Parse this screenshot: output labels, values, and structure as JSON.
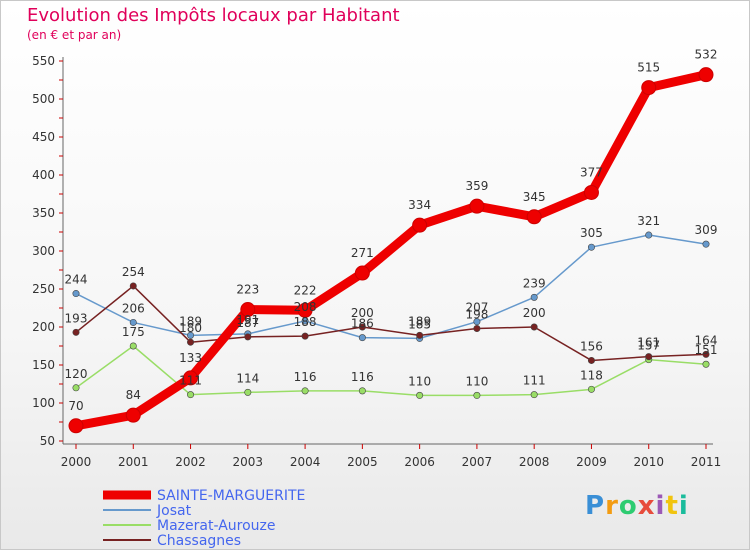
{
  "title": "Evolution des Impôts locaux par Habitant",
  "subtitle": "(en € et par an)",
  "logo": {
    "text": "Proxiti",
    "colors": [
      "#3a8fd6",
      "#f39c12",
      "#2ecc71",
      "#e74c3c",
      "#9b59b6",
      "#f1c40f",
      "#1abc9c"
    ]
  },
  "chart_data": {
    "type": "line",
    "title": "Evolution des Impôts locaux par Habitant",
    "subtitle": "(en € et par an)",
    "x": [
      "2000",
      "2001",
      "2002",
      "2003",
      "2004",
      "2005",
      "2006",
      "2007",
      "2008",
      "2009",
      "2010",
      "2011"
    ],
    "ylim": [
      50,
      550
    ],
    "yticks": [
      50,
      100,
      150,
      200,
      250,
      300,
      350,
      400,
      450,
      500,
      550
    ],
    "grid": false,
    "legend_position": "bottom-left",
    "series": [
      {
        "name": "SAINTE-MARGUERITE",
        "color": "#ee0000",
        "values": [
          70,
          84,
          133,
          223,
          222,
          271,
          334,
          359,
          345,
          377,
          515,
          532
        ]
      },
      {
        "name": "Josat",
        "color": "#6699cc",
        "values": [
          244,
          206,
          189,
          191,
          208,
          186,
          185,
          207,
          239,
          305,
          321,
          309
        ]
      },
      {
        "name": "Mazerat-Aurouze",
        "color": "#99dd66",
        "values": [
          120,
          175,
          111,
          114,
          116,
          116,
          110,
          110,
          111,
          118,
          157,
          151
        ]
      },
      {
        "name": "Chassagnes",
        "color": "#772222",
        "values": [
          193,
          254,
          180,
          187,
          188,
          200,
          189,
          198,
          200,
          156,
          161,
          164
        ]
      }
    ],
    "label_overrides": {
      "Josat": [
        "244",
        "206",
        "189",
        "191",
        "208",
        "186",
        "185",
        "207",
        "239",
        "305",
        "321",
        "309"
      ],
      "Chassagnes": [
        "193",
        "254",
        "180",
        "187",
        "188",
        "200",
        "189",
        "198",
        "200",
        "156",
        "161",
        "164"
      ]
    }
  }
}
